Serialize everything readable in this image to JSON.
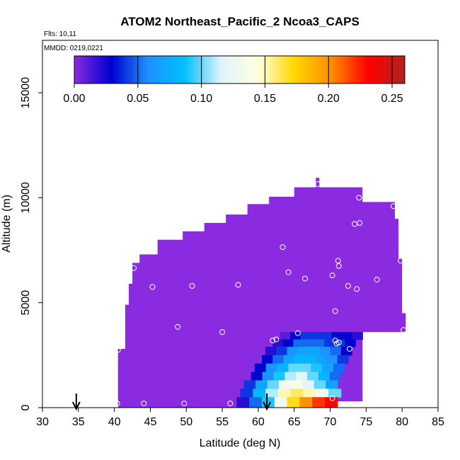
{
  "chart_data": {
    "type": "heatmap",
    "title": "ATOM2 Northeast_Pacific_2 Ncoa3_CAPS",
    "flights_label": "Flts: 10,11",
    "mmdd_label": "MMDD: 0219,0221",
    "xlabel": "Latitude (deg N)",
    "ylabel": "Altitude (m)",
    "xlim": [
      30,
      85
    ],
    "ylim": [
      0,
      17500
    ],
    "xticks": [
      "30",
      "35",
      "40",
      "45",
      "50",
      "55",
      "60",
      "65",
      "70",
      "75",
      "80",
      "85"
    ],
    "yticks": [
      "0",
      "5000",
      "10000",
      "15000"
    ],
    "colorbar": {
      "range": [
        0,
        0.26
      ],
      "ticks": [
        "0.00",
        "0.05",
        "0.10",
        "0.15",
        "0.20",
        "0.25"
      ],
      "stops": [
        "#8a2be2",
        "#0000cd",
        "#1e90ff",
        "#00bfff",
        "#e0f4ff",
        "#ffffe0",
        "#ffd700",
        "#ff8c00",
        "#ff0000",
        "#b22222"
      ]
    },
    "background_color": "#8a2be2",
    "envelope": [
      [
        40.5,
        0
      ],
      [
        40.5,
        2800
      ],
      [
        41.5,
        2800
      ],
      [
        41.5,
        4900
      ],
      [
        42.0,
        4900
      ],
      [
        42.0,
        5900
      ],
      [
        42.5,
        5900
      ],
      [
        42.5,
        6900
      ],
      [
        43.5,
        6900
      ],
      [
        43.5,
        7300
      ],
      [
        46.0,
        7300
      ],
      [
        46.0,
        8000
      ],
      [
        49.5,
        8000
      ],
      [
        49.5,
        8400
      ],
      [
        52.5,
        8400
      ],
      [
        52.5,
        8800
      ],
      [
        55.5,
        8800
      ],
      [
        55.5,
        9200
      ],
      [
        58.5,
        9200
      ],
      [
        58.5,
        9700
      ],
      [
        61.5,
        9700
      ],
      [
        61.5,
        10050
      ],
      [
        65.0,
        10050
      ],
      [
        65.0,
        10500
      ],
      [
        68.0,
        10500
      ],
      [
        68.0,
        10950
      ],
      [
        68.5,
        10950
      ],
      [
        68.5,
        10500
      ],
      [
        74.5,
        10500
      ],
      [
        74.5,
        9800
      ],
      [
        79.0,
        9800
      ],
      [
        79.0,
        9000
      ],
      [
        79.5,
        9000
      ],
      [
        79.5,
        7100
      ],
      [
        80.0,
        7100
      ],
      [
        80.0,
        4500
      ],
      [
        80.5,
        4500
      ],
      [
        80.5,
        3600
      ],
      [
        74.5,
        3600
      ],
      [
        74.5,
        300
      ],
      [
        71.0,
        300
      ],
      [
        71.0,
        0
      ]
    ],
    "gradient_rows": [
      {
        "y0": 3250,
        "y1": 3600,
        "x0": 63.0,
        "x1": 74.5,
        "values": [
          0.01,
          0.03,
          0.04,
          0.04,
          0.04,
          0.03,
          0.03,
          0.02
        ]
      },
      {
        "y0": 2900,
        "y1": 3250,
        "x0": 62.0,
        "x1": 73.5,
        "values": [
          0.02,
          0.03,
          0.05,
          0.05,
          0.05,
          0.04,
          0.04,
          0.03
        ]
      },
      {
        "y0": 2500,
        "y1": 2900,
        "x0": 61.0,
        "x1": 73.0,
        "values": [
          0.02,
          0.04,
          0.06,
          0.07,
          0.07,
          0.06,
          0.05,
          0.03
        ]
      },
      {
        "y0": 2100,
        "y1": 2500,
        "x0": 60.5,
        "x1": 72.5,
        "values": [
          0.03,
          0.05,
          0.07,
          0.08,
          0.08,
          0.07,
          0.06,
          0.04
        ]
      },
      {
        "y0": 1700,
        "y1": 2100,
        "x0": 59.5,
        "x1": 72.0,
        "values": [
          0.03,
          0.06,
          0.08,
          0.1,
          0.1,
          0.09,
          0.07,
          0.05
        ]
      },
      {
        "y0": 1300,
        "y1": 1700,
        "x0": 59.0,
        "x1": 71.5,
        "values": [
          0.03,
          0.06,
          0.09,
          0.11,
          0.12,
          0.1,
          0.08,
          0.05
        ]
      },
      {
        "y0": 900,
        "y1": 1300,
        "x0": 58.0,
        "x1": 71.0,
        "values": [
          0.04,
          0.07,
          0.1,
          0.13,
          0.14,
          0.12,
          0.1,
          0.07
        ]
      },
      {
        "y0": 500,
        "y1": 900,
        "x0": 57.5,
        "x1": 71.5,
        "values": [
          0.04,
          0.08,
          0.11,
          0.15,
          0.16,
          0.15,
          0.13,
          0.1
        ]
      },
      {
        "y0": 0,
        "y1": 500,
        "x0": 57.0,
        "x1": 71.0,
        "values": [
          0.02,
          0.05,
          0.09,
          0.13,
          0.17,
          0.2,
          0.22,
          0.23
        ]
      }
    ],
    "scatter_points": [
      [
        40.5,
        2750
      ],
      [
        42.7,
        6650
      ],
      [
        45.3,
        5750
      ],
      [
        50.8,
        5800
      ],
      [
        57.2,
        5850
      ],
      [
        48.8,
        3850
      ],
      [
        55.0,
        3600
      ],
      [
        63.4,
        7650
      ],
      [
        64.2,
        6450
      ],
      [
        66.5,
        6150
      ],
      [
        70.3,
        6300
      ],
      [
        71.1,
        7000
      ],
      [
        71.2,
        6750
      ],
      [
        72.5,
        5800
      ],
      [
        73.7,
        5650
      ],
      [
        76.5,
        6100
      ],
      [
        79.8,
        7000
      ],
      [
        74.0,
        10000
      ],
      [
        68.3,
        10650
      ],
      [
        78.8,
        9600
      ],
      [
        73.4,
        8750
      ],
      [
        74.1,
        8800
      ],
      [
        70.7,
        4600
      ],
      [
        62.0,
        3200
      ],
      [
        62.5,
        3250
      ],
      [
        65.5,
        3550
      ],
      [
        70.7,
        3200
      ],
      [
        70.9,
        3050
      ],
      [
        71.2,
        3100
      ],
      [
        72.7,
        2800
      ],
      [
        76.3,
        3000
      ],
      [
        80.2,
        3700
      ],
      [
        40.4,
        200
      ],
      [
        44.1,
        200
      ],
      [
        49.7,
        200
      ],
      [
        56.1,
        200
      ],
      [
        70.3,
        450
      ]
    ],
    "arrows": [
      34.7,
      61.2
    ]
  }
}
